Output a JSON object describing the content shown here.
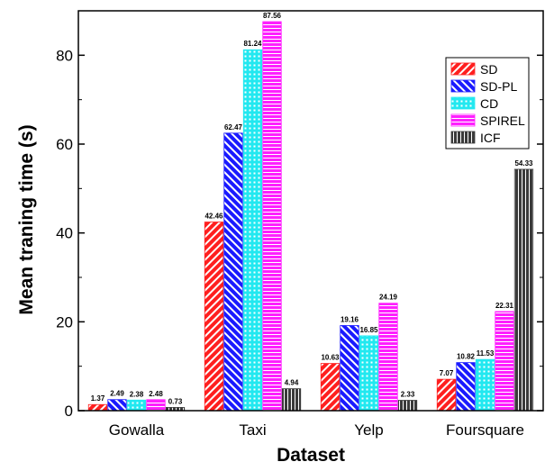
{
  "chart_data": {
    "type": "bar",
    "title": "",
    "xlabel": "Dataset",
    "ylabel": "Mean traning time (s)",
    "ylim": [
      0,
      90
    ],
    "yticks": [
      0,
      20,
      40,
      60,
      80
    ],
    "grid": false,
    "legend_position": "top-right",
    "categories": [
      "Gowalla",
      "Taxi",
      "Yelp",
      "Foursquare"
    ],
    "series": [
      {
        "name": "SD",
        "values": [
          1.37,
          42.46,
          10.63,
          7.07
        ],
        "color": "#ff1f1f",
        "pattern": "diag-up"
      },
      {
        "name": "SD-PL",
        "values": [
          2.49,
          62.47,
          19.16,
          10.82
        ],
        "color": "#1a1aff",
        "pattern": "diag-down"
      },
      {
        "name": "CD",
        "values": [
          2.38,
          81.24,
          16.85,
          11.53
        ],
        "color": "#22e8f0",
        "pattern": "grid"
      },
      {
        "name": "SPIREL",
        "values": [
          2.48,
          87.56,
          24.19,
          22.31
        ],
        "color": "#ff1fff",
        "pattern": "horizontal"
      },
      {
        "name": "ICF",
        "values": [
          0.73,
          4.94,
          2.33,
          54.33
        ],
        "color": "#3a3a3a",
        "pattern": "vertical"
      }
    ],
    "value_labels": [
      [
        "1.37",
        "42.46",
        "10.63",
        "7.07"
      ],
      [
        "2.49",
        "62.47",
        "19.16",
        "10.82"
      ],
      [
        "2.38",
        "81.24",
        "16.85",
        "11.53"
      ],
      [
        "2.48",
        "87.56",
        "24.19",
        "22.31"
      ],
      [
        "0.73",
        "4.94",
        "2.33",
        "54.33"
      ]
    ]
  }
}
